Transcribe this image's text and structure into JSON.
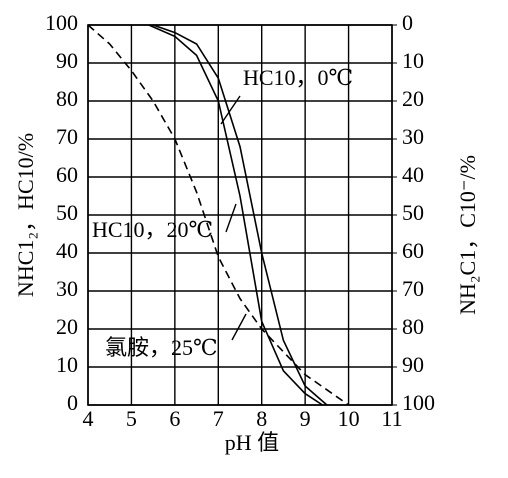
{
  "chart_data": {
    "type": "line",
    "xlabel": "pH 值",
    "ylabel": "NHC1₂，HC10/%",
    "y2label": "NH₂C1，C10⁻/%",
    "xlim": [
      4,
      11
    ],
    "xticks": [
      4,
      5,
      6,
      7,
      8,
      9,
      10,
      11
    ],
    "ylim": [
      0,
      100
    ],
    "yticks": [
      0,
      10,
      20,
      30,
      40,
      50,
      60,
      70,
      80,
      90,
      100
    ],
    "y2lim": [
      100,
      0
    ],
    "y2ticks": [
      0,
      10,
      20,
      30,
      40,
      50,
      60,
      70,
      80,
      90,
      100
    ],
    "grid": true,
    "series": [
      {
        "name": "HC10，0℃",
        "color": "#000000",
        "dash": false,
        "x": [
          5.5,
          6,
          6.5,
          7,
          7.5,
          8,
          8.5,
          9,
          9.5
        ],
        "values": [
          100,
          98,
          95,
          86,
          68,
          40,
          17,
          5,
          0
        ]
      },
      {
        "name": "HC10，20℃",
        "color": "#000000",
        "dash": false,
        "x": [
          5.4,
          6,
          6.5,
          7,
          7.5,
          8,
          8.5,
          9,
          9.4
        ],
        "values": [
          100,
          97,
          92,
          80,
          55,
          22,
          9,
          3,
          0
        ]
      },
      {
        "name": "氯胺，25℃",
        "color": "#000000",
        "dash": true,
        "x": [
          4,
          4.5,
          5,
          5.5,
          6,
          6.5,
          7,
          7.5,
          8,
          8.5,
          9,
          9.5,
          10
        ],
        "values": [
          100,
          95,
          88,
          80,
          70,
          56,
          39,
          28,
          20,
          14,
          8,
          4,
          0
        ]
      }
    ]
  }
}
